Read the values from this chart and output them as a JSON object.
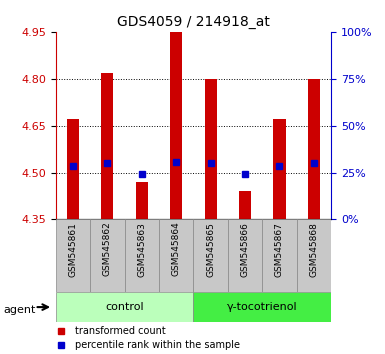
{
  "title": "GDS4059 / 214918_at",
  "samples": [
    "GSM545861",
    "GSM545862",
    "GSM545863",
    "GSM545864",
    "GSM545865",
    "GSM545866",
    "GSM545867",
    "GSM545868"
  ],
  "bar_values": [
    4.67,
    4.82,
    4.47,
    4.95,
    4.8,
    4.44,
    4.67,
    4.8
  ],
  "blue_values": [
    4.52,
    4.53,
    4.495,
    4.535,
    4.53,
    4.495,
    4.52,
    4.53
  ],
  "bar_bottom": 4.35,
  "ylim": [
    4.35,
    4.95
  ],
  "yticks_left": [
    4.35,
    4.5,
    4.65,
    4.8,
    4.95
  ],
  "yticks_right_pct": [
    0,
    25,
    50,
    75,
    100
  ],
  "yticks_right_vals": [
    4.35,
    4.5,
    4.65,
    4.8,
    4.95
  ],
  "bar_color": "#cc0000",
  "blue_color": "#0000cc",
  "bg_color": "#ffffff",
  "plot_bg": "#ffffff",
  "groups": [
    {
      "label": "control",
      "indices": [
        0,
        1,
        2,
        3
      ],
      "color": "#bbffbb"
    },
    {
      "label": "γ-tocotrienol",
      "indices": [
        4,
        5,
        6,
        7
      ],
      "color": "#44ee44"
    }
  ],
  "agent_label": "agent",
  "legend_items": [
    {
      "label": "transformed count",
      "color": "#cc0000"
    },
    {
      "label": "percentile rank within the sample",
      "color": "#0000cc"
    }
  ],
  "bar_width": 0.35,
  "left_color": "#cc0000",
  "right_color": "#0000cc",
  "grid_yticks": [
    4.5,
    4.65,
    4.8
  ],
  "xtick_bg": "#c8c8c8",
  "xtick_label_fontsize": 6.5,
  "title_fontsize": 10
}
